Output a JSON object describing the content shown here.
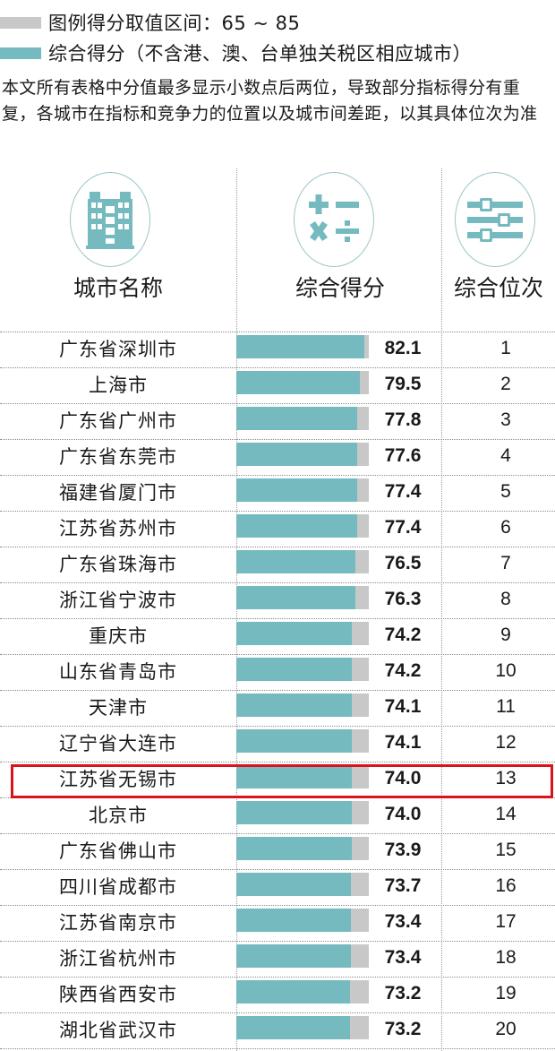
{
  "legend": {
    "range_label": "图例得分取值区间：65 ~ 85",
    "range_color": "#c8c8c8",
    "score_label": "综合得分（不含港、澳、台单独关税区相应城市）",
    "score_color": "#74babf"
  },
  "note": "本文所有表格中分值最多显示小数点后两位，导致部分指标得分有重复，各城市在指标和竞争力的位置以及城市间差距，以其具体位次为准",
  "columns": {
    "city": {
      "label": "城市名称",
      "icon": "building-icon"
    },
    "score": {
      "label": "综合得分",
      "icon": "calculator-icon"
    },
    "rank": {
      "label": "综合位次",
      "icon": "sliders-icon"
    }
  },
  "highlight": {
    "row_index": 12,
    "color": "#d9131b"
  },
  "chart_data": {
    "type": "bar",
    "title": "综合得分",
    "xlabel": "",
    "ylabel": "",
    "xlim": [
      65,
      85
    ],
    "legend": [
      "图例得分取值区间：65 ~ 85",
      "综合得分（不含港、澳、台单独关税区相应城市）"
    ],
    "categories": [
      "广东省深圳市",
      "上海市",
      "广东省广州市",
      "广东省东莞市",
      "福建省厦门市",
      "江苏省苏州市",
      "广东省珠海市",
      "浙江省宁波市",
      "重庆市",
      "山东省青岛市",
      "天津市",
      "辽宁省大连市",
      "江苏省无锡市",
      "北京市",
      "广东省佛山市",
      "四川省成都市",
      "江苏省南京市",
      "浙江省杭州市",
      "陕西省西安市",
      "湖北省武汉市"
    ],
    "values": [
      82.1,
      79.5,
      77.8,
      77.6,
      77.4,
      77.4,
      76.5,
      76.3,
      74.2,
      74.2,
      74.1,
      74.1,
      74.0,
      74.0,
      73.9,
      73.7,
      73.4,
      73.4,
      73.2,
      73.2
    ],
    "ranks": [
      1,
      2,
      3,
      4,
      5,
      6,
      7,
      8,
      9,
      10,
      11,
      12,
      13,
      14,
      15,
      16,
      17,
      18,
      19,
      20
    ]
  },
  "rows": [
    {
      "city": "广东省深圳市",
      "score": "82.1",
      "rank": "1"
    },
    {
      "city": "上海市",
      "score": "79.5",
      "rank": "2"
    },
    {
      "city": "广东省广州市",
      "score": "77.8",
      "rank": "3"
    },
    {
      "city": "广东省东莞市",
      "score": "77.6",
      "rank": "4"
    },
    {
      "city": "福建省厦门市",
      "score": "77.4",
      "rank": "5"
    },
    {
      "city": "江苏省苏州市",
      "score": "77.4",
      "rank": "6"
    },
    {
      "city": "广东省珠海市",
      "score": "76.5",
      "rank": "7"
    },
    {
      "city": "浙江省宁波市",
      "score": "76.3",
      "rank": "8"
    },
    {
      "city": "重庆市",
      "score": "74.2",
      "rank": "9"
    },
    {
      "city": "山东省青岛市",
      "score": "74.2",
      "rank": "10"
    },
    {
      "city": "天津市",
      "score": "74.1",
      "rank": "11"
    },
    {
      "city": "辽宁省大连市",
      "score": "74.1",
      "rank": "12"
    },
    {
      "city": "江苏省无锡市",
      "score": "74.0",
      "rank": "13"
    },
    {
      "city": "北京市",
      "score": "74.0",
      "rank": "14"
    },
    {
      "city": "广东省佛山市",
      "score": "73.9",
      "rank": "15"
    },
    {
      "city": "四川省成都市",
      "score": "73.7",
      "rank": "16"
    },
    {
      "city": "江苏省南京市",
      "score": "73.4",
      "rank": "17"
    },
    {
      "city": "浙江省杭州市",
      "score": "73.4",
      "rank": "18"
    },
    {
      "city": "陕西省西安市",
      "score": "73.2",
      "rank": "19"
    },
    {
      "city": "湖北省武汉市",
      "score": "73.2",
      "rank": "20"
    }
  ]
}
